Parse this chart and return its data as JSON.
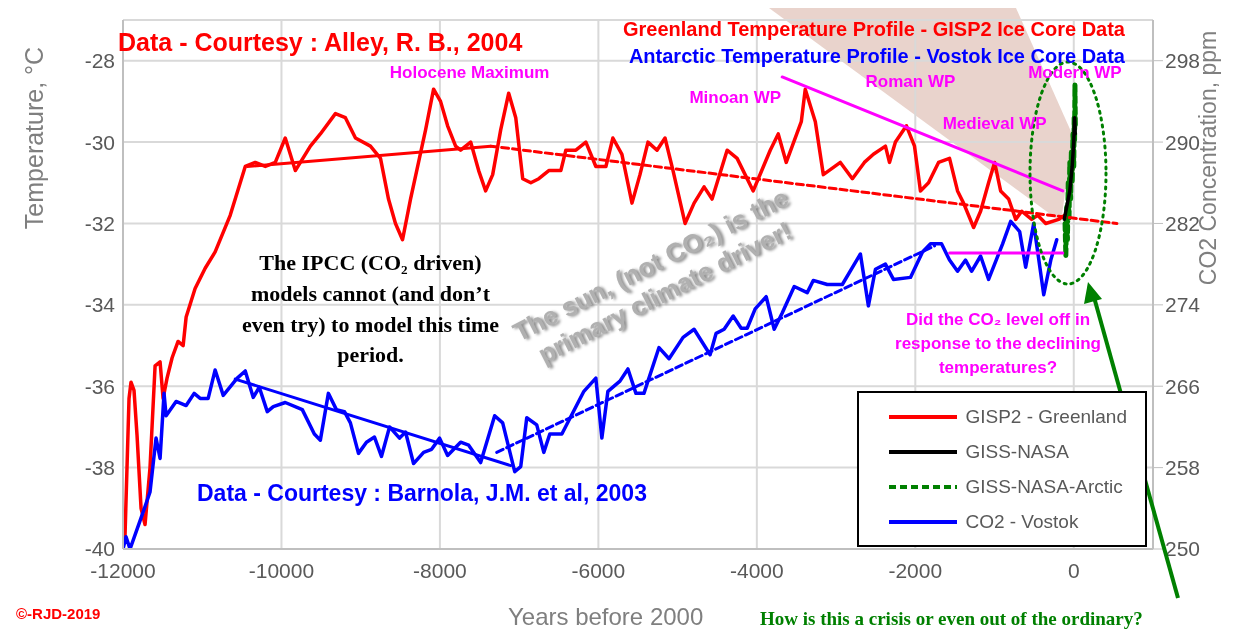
{
  "chart_data": {
    "type": "line",
    "title": "Greenland Temperature Profile - GISP2 Ice Core Data",
    "subtitle": "Antarctic Temperature Profile - Vostok Ice Core Data",
    "xlabel": "Years before 2000",
    "ylabel": "Temperature, °C",
    "y2label": "CO2 Concentration, ppm",
    "xlim": [
      -12000,
      1000
    ],
    "xticks": [
      -12000,
      -10000,
      -8000,
      -6000,
      -4000,
      -2000,
      0
    ],
    "ylim": [
      -40,
      -27
    ],
    "yticks": [
      -40,
      -38,
      -36,
      -34,
      -32,
      -30,
      -28
    ],
    "y2lim": [
      250,
      302
    ],
    "y2ticks": [
      250,
      258,
      266,
      274,
      282,
      290,
      298
    ],
    "grid": true,
    "legend": "bottom right",
    "series": [
      {
        "name": "GISP2 - Greenland",
        "color": "#ff0000",
        "x": [
          -11975,
          -11924,
          -11899,
          -11861,
          -11823,
          -11772,
          -11722,
          -11659,
          -11595,
          -11532,
          -11494,
          -11444,
          -11380,
          -11305,
          -11241,
          -11203,
          -11090,
          -10963,
          -10837,
          -10647,
          -10457,
          -10331,
          -10204,
          -10078,
          -9952,
          -9825,
          -9635,
          -9509,
          -9319,
          -9193,
          -9066,
          -8877,
          -8750,
          -8649,
          -8561,
          -8472,
          -8371,
          -8270,
          -8181,
          -8080,
          -7992,
          -7903,
          -7802,
          -7739,
          -7612,
          -7511,
          -7423,
          -7334,
          -7233,
          -7132,
          -7043,
          -6955,
          -6853,
          -6752,
          -6626,
          -6474,
          -6411,
          -6284,
          -6158,
          -6032,
          -5905,
          -5817,
          -5703,
          -5576,
          -5475,
          -5374,
          -5260,
          -5159,
          -5058,
          -4906,
          -4792,
          -4666,
          -4565,
          -4375,
          -4249,
          -4046,
          -3831,
          -3730,
          -3629,
          -3439,
          -3389,
          -3262,
          -3161,
          -2946,
          -2794,
          -2643,
          -2529,
          -2377,
          -2326,
          -2251,
          -2112,
          -2010,
          -1935,
          -1833,
          -1707,
          -1568,
          -1467,
          -1391,
          -1264,
          -1176,
          -1075,
          -999,
          -923,
          -822,
          -733,
          -657,
          -531,
          -455,
          -354,
          -190,
          -114
        ],
        "values": [
          -39.7,
          -36.3,
          -35.9,
          -36.1,
          -37.2,
          -39.0,
          -39.4,
          -38.0,
          -35.5,
          -35.4,
          -36.3,
          -35.8,
          -35.3,
          -34.9,
          -35.0,
          -34.3,
          -33.6,
          -33.1,
          -32.7,
          -31.8,
          -30.6,
          -30.5,
          -30.6,
          -30.5,
          -29.9,
          -30.7,
          -30.1,
          -29.8,
          -29.3,
          -29.4,
          -29.9,
          -30.1,
          -30.4,
          -31.4,
          -32.0,
          -32.4,
          -31.4,
          -30.5,
          -29.7,
          -28.7,
          -29.0,
          -29.6,
          -30.1,
          -30.2,
          -30.0,
          -30.7,
          -31.2,
          -30.8,
          -29.7,
          -28.8,
          -29.4,
          -30.9,
          -31.0,
          -30.9,
          -30.7,
          -30.7,
          -30.2,
          -30.2,
          -30.0,
          -30.6,
          -30.6,
          -29.9,
          -30.3,
          -31.5,
          -30.8,
          -30.0,
          -30.2,
          -29.9,
          -30.7,
          -32.0,
          -31.5,
          -31.1,
          -31.4,
          -30.2,
          -30.4,
          -31.2,
          -30.2,
          -29.8,
          -30.5,
          -29.5,
          -28.7,
          -29.5,
          -30.8,
          -30.5,
          -30.9,
          -30.5,
          -30.3,
          -30.1,
          -30.5,
          -30.0,
          -29.6,
          -30.1,
          -31.2,
          -31.0,
          -30.5,
          -30.4,
          -31.2,
          -31.5,
          -32.1,
          -31.7,
          -31.0,
          -30.5,
          -31.2,
          -31.4,
          -31.9,
          -31.7,
          -31.9,
          -31.8,
          -32.0,
          -31.9,
          -31.8
        ]
      },
      {
        "name": "GISS-NASA",
        "color": "#000000",
        "x": [
          -120,
          -80,
          -50,
          -20,
          0,
          10,
          18
        ],
        "values": [
          -31.9,
          -31.5,
          -31.2,
          -30.6,
          -30.0,
          -29.4,
          -29.8
        ]
      },
      {
        "name": "GISS-NASA-Arctic",
        "color": "#008000",
        "line_style": "dashed",
        "x": [
          -110,
          -100,
          -90,
          -80,
          -70,
          -60,
          -50,
          -40,
          -30,
          -20,
          -10,
          0,
          5,
          10,
          15,
          20
        ],
        "values": [
          -32.0,
          -32.8,
          -31.6,
          -32.4,
          -31.0,
          -31.9,
          -30.5,
          -31.4,
          -30.2,
          -31.0,
          -29.8,
          -30.6,
          -29.4,
          -30.0,
          -28.6,
          -29.6
        ]
      },
      {
        "name": "CO2 - Vostok",
        "color": "#0000ff",
        "axis": "y2",
        "x": [
          -12000,
          -11962,
          -11911,
          -11734,
          -11659,
          -11583,
          -11532,
          -11482,
          -11456,
          -11330,
          -11203,
          -11102,
          -11026,
          -10925,
          -10837,
          -10735,
          -10558,
          -10457,
          -10356,
          -10280,
          -10179,
          -10103,
          -9952,
          -9737,
          -9585,
          -9509,
          -9408,
          -9307,
          -9205,
          -9130,
          -9028,
          -8927,
          -8826,
          -8738,
          -8636,
          -8510,
          -8434,
          -8333,
          -8206,
          -8105,
          -8004,
          -7903,
          -7739,
          -7637,
          -7486,
          -7309,
          -7208,
          -7056,
          -6980,
          -6904,
          -6778,
          -6689,
          -6613,
          -6461,
          -6183,
          -6032,
          -5956,
          -5880,
          -5728,
          -5627,
          -5526,
          -5425,
          -5235,
          -5108,
          -4931,
          -4792,
          -4590,
          -4514,
          -4413,
          -4299,
          -4198,
          -4122,
          -4021,
          -3882,
          -3781,
          -3680,
          -3528,
          -3364,
          -3288,
          -3111,
          -2921,
          -2693,
          -2592,
          -2503,
          -2377,
          -2276,
          -2061,
          -1909,
          -1808,
          -1669,
          -1568,
          -1467,
          -1366,
          -1290,
          -1176,
          -1075,
          -898,
          -796,
          -683,
          -607,
          -506,
          -455,
          -379,
          -290,
          -215
        ],
        "values": [
          250,
          251.2,
          250,
          253.9,
          255.6,
          260.9,
          258.9,
          265.3,
          263.1,
          264.5,
          264.1,
          265.3,
          264.8,
          264.8,
          267.6,
          265.1,
          266.8,
          267.5,
          264.9,
          265.9,
          263.5,
          264.0,
          264.4,
          263.7,
          261.3,
          260.7,
          265.3,
          263.7,
          263.5,
          262.4,
          259.4,
          260.5,
          261.0,
          259.1,
          262.0,
          260.9,
          261.5,
          258.4,
          259.5,
          259.8,
          260.9,
          259.2,
          260.5,
          260.2,
          258.5,
          263.1,
          262.4,
          257.6,
          258.1,
          262.9,
          262.2,
          259.5,
          261.3,
          261.3,
          265.5,
          266.8,
          260.9,
          265.5,
          266.5,
          267.7,
          265.3,
          265.3,
          269.8,
          268.7,
          270.8,
          271.6,
          269.1,
          271.2,
          271.6,
          272.9,
          271.7,
          271.7,
          273.6,
          274.8,
          271.6,
          273.2,
          275.8,
          275.2,
          276.4,
          276.0,
          276.0,
          279.0,
          273.9,
          277.5,
          278.0,
          276.5,
          276.7,
          279.2,
          280.0,
          280.0,
          278.4,
          277.3,
          278.4,
          277.3,
          278.8,
          276.5,
          280.0,
          282.2,
          281.2,
          277.7,
          282.0,
          279.2,
          275.0,
          278.4,
          280.4
        ]
      },
      {
        "type": "line",
        "color": "#ff0000",
        "x": [
          -10432,
          -7359
        ],
        "values": [
          -30.6,
          -30.1
        ]
      },
      {
        "type": "line",
        "color": "#ff0000",
        "line_style": "dashed",
        "x": [
          -7359,
          544
        ],
        "values": [
          -30.1,
          -32.0
        ]
      },
      {
        "type": "line",
        "color": "#ff00ff",
        "x": [
          -3680,
          -139
        ],
        "values": [
          -28.4,
          -31.2
        ]
      },
      {
        "type": "line",
        "color": "#0000ff",
        "axis": "y2",
        "x": [
          -10584,
          -7106
        ],
        "values": [
          266.7,
          258.2
        ]
      },
      {
        "type": "line",
        "color": "#0000ff",
        "axis": "y2",
        "line_style": "dashed",
        "x": [
          -7283,
          -1757
        ],
        "values": [
          259.5,
          279.8
        ]
      },
      {
        "type": "line",
        "color": "#ff00ff",
        "axis": "y2",
        "x": [
          -1568,
          -139
        ],
        "values": [
          279.1,
          279.1
        ]
      }
    ],
    "annotations": [
      "Data - Courtesy : Alley, R. B., 2004",
      "Data - Courtesy : Barnola, J.M. et al, 2003",
      "The IPCC (CO₂ driven) models cannot (and don’t even try) to model this time period.",
      "The sun, (not CO₂) is the primary climate driver!",
      "Did the CO₂ level off in response to the declining temperatures?",
      "©-RJD-2019",
      "How is this a crisis or even out of the ordinary?",
      {
        "text": "Holocene Maximum",
        "x": -8080,
        "y": -28.7
      },
      {
        "text": "Minoan WP",
        "x": -3389,
        "y": -28.7
      },
      {
        "text": "Roman WP",
        "x": -2112,
        "y": -29.6
      },
      {
        "text": "Medieval WP",
        "x": -999,
        "y": -30.5
      },
      {
        "text": "Modern WP",
        "x": 15,
        "y": -28.6
      }
    ]
  }
}
